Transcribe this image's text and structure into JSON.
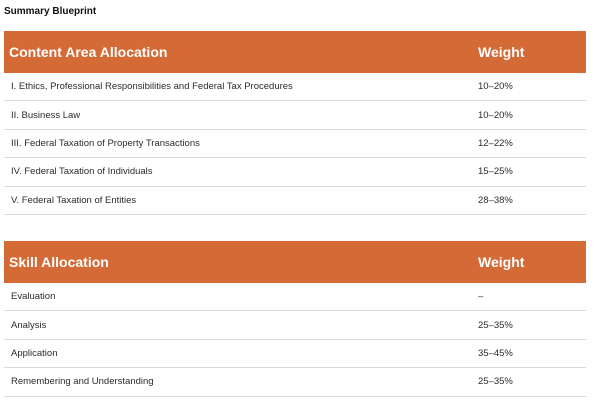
{
  "title": "Summary Blueprint",
  "content_table": {
    "header_label": "Content Area Allocation",
    "header_weight": "Weight",
    "rows": [
      {
        "label": "I. Ethics, Professional Responsibilities and Federal Tax Procedures",
        "weight": "10–20%"
      },
      {
        "label": "II. Business Law",
        "weight": "10–20%"
      },
      {
        "label": "III. Federal Taxation of Property Transactions",
        "weight": "12–22%"
      },
      {
        "label": "IV. Federal Taxation of Individuals",
        "weight": "15–25%"
      },
      {
        "label": "V. Federal Taxation of Entities",
        "weight": "28–38%"
      }
    ]
  },
  "skill_table": {
    "header_label": "Skill Allocation",
    "header_weight": "Weight",
    "rows": [
      {
        "label": "Evaluation",
        "weight": "–"
      },
      {
        "label": "Analysis",
        "weight": "25–35%"
      },
      {
        "label": "Application",
        "weight": "35–45%"
      },
      {
        "label": "Remembering and Understanding",
        "weight": "25–35%"
      }
    ]
  },
  "colors": {
    "header_background": "#d46a35",
    "header_text": "#ffffff",
    "row_divider": "#d9d9d9"
  }
}
